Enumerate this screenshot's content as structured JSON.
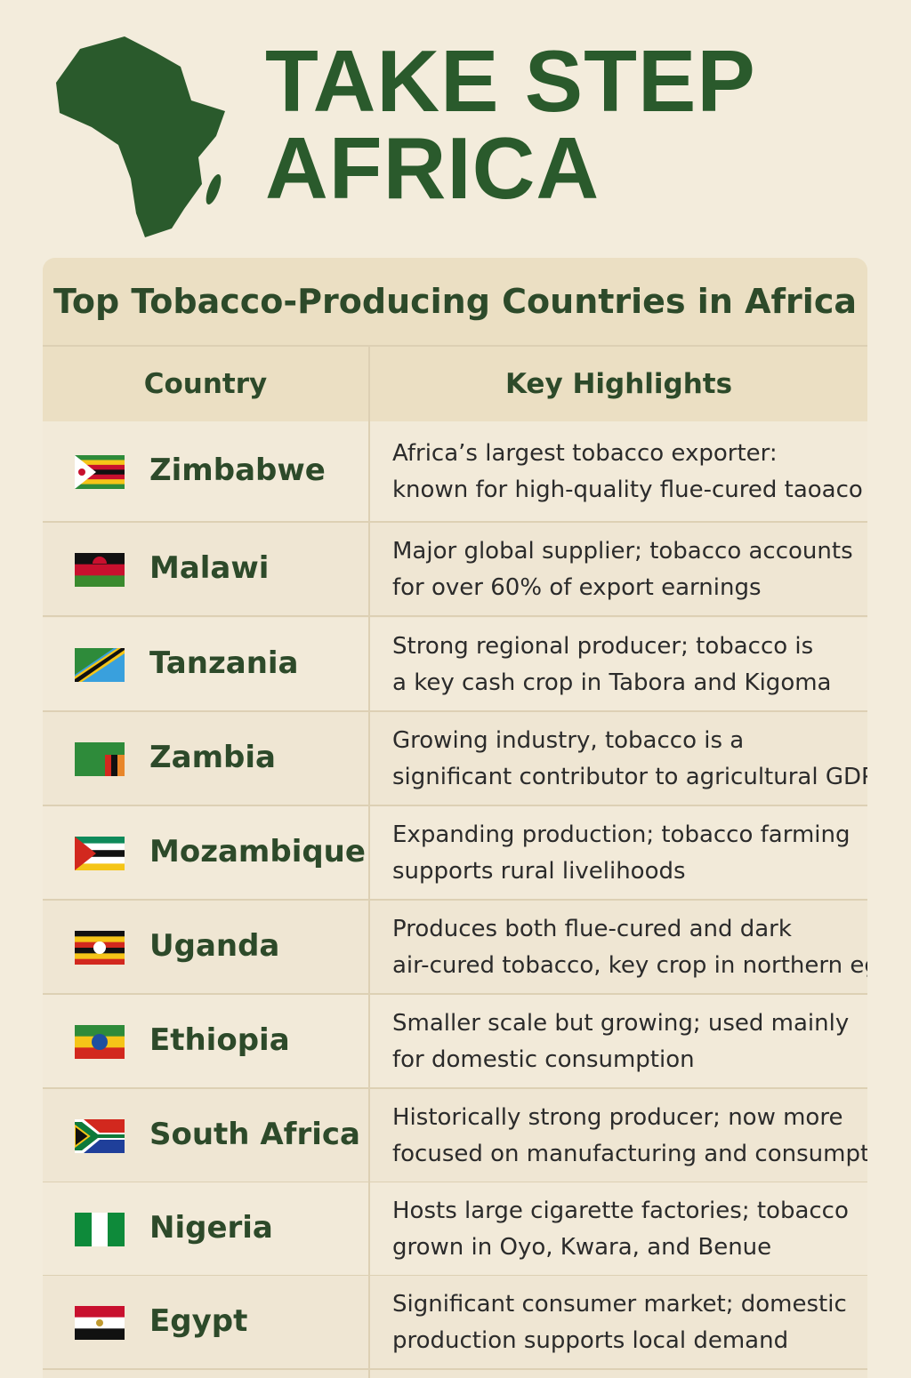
{
  "header": {
    "title_lines": [
      "TAKE STEP",
      "AFRICA"
    ]
  },
  "table": {
    "title": "Top Tobacco-Producing Countries in Africa",
    "columns": [
      "Country",
      "Key Highlights"
    ],
    "rows": [
      {
        "country": "Zimbabwe",
        "highlights": [
          "Africa’s largest tobacco exporter:",
          "known for high-quality flue-cured taoaco"
        ]
      },
      {
        "country": "Malawi",
        "highlights": [
          "Major global supplier; tobacco accounts",
          "for over 60% of export earnings"
        ]
      },
      {
        "country": "Tanzania",
        "highlights": [
          "Strong regional producer; tobacco is",
          "a key cash crop in Tabora and Kigoma"
        ]
      },
      {
        "country": "Zambia",
        "highlights": [
          "Growing industry, tobacco is a",
          "significant contributor to agricultural GDP"
        ]
      },
      {
        "country": "Mozambique",
        "highlights": [
          "Expanding production; tobacco farming",
          "supports rural livelihoods"
        ]
      },
      {
        "country": "Uganda",
        "highlights": [
          "Produces both flue-cured and dark",
          "air-cured tobacco, key crop in northern egions"
        ]
      },
      {
        "country": "Ethiopia",
        "highlights": [
          "Smaller scale but growing; used mainly",
          "for domestic consumption"
        ]
      },
      {
        "country": "South Africa",
        "highlights": [
          "Historically strong producer; now more",
          "focused on manufacturing and consumption"
        ]
      },
      {
        "country": "Nigeria",
        "highlights": [
          "Hosts large cigarette factories; tobacco",
          "grown in Oyo, Kwara, and Benue"
        ]
      },
      {
        "country": "Egypt",
        "highlights": [
          "Significant consumer market; domestic",
          "production supports local demand"
        ]
      }
    ]
  }
}
